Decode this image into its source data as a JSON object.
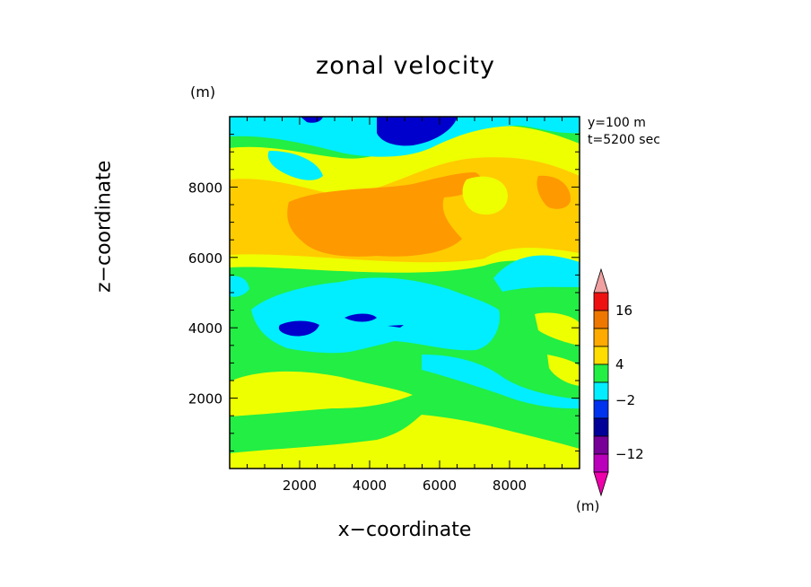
{
  "chart_data": {
    "type": "heatmap",
    "title": "zonal velocity",
    "xlabel": "x−coordinate",
    "ylabel": "z−coordinate",
    "y_unit": "(m)",
    "colorbar_unit": "(m)",
    "annotations": [
      "y=100 m",
      "t=5200 sec"
    ],
    "xlim": [
      0,
      10000
    ],
    "ylim": [
      0,
      10000
    ],
    "x_ticks": [
      "2000",
      "4000",
      "6000",
      "8000"
    ],
    "y_ticks": [
      "2000",
      "4000",
      "6000",
      "8000"
    ],
    "colorbar_labels": [
      "16",
      "4",
      "−2",
      "−12"
    ],
    "colorbar_colors": [
      "#f0a0a0",
      "#ee1111",
      "#ee7700",
      "#ffaa00",
      "#ffdd00",
      "#22ee44",
      "#00eeff",
      "#0033ee",
      "#000099",
      "#770099",
      "#bb00bb",
      "#ee00aa"
    ],
    "levels": {
      "deep_blue": "#0000cc",
      "blue": "#0033ee",
      "cyan": "#00eeff",
      "green": "#22ee44",
      "yellow": "#eeff00",
      "gold": "#ffcc00",
      "orange": "#ff9900"
    }
  }
}
